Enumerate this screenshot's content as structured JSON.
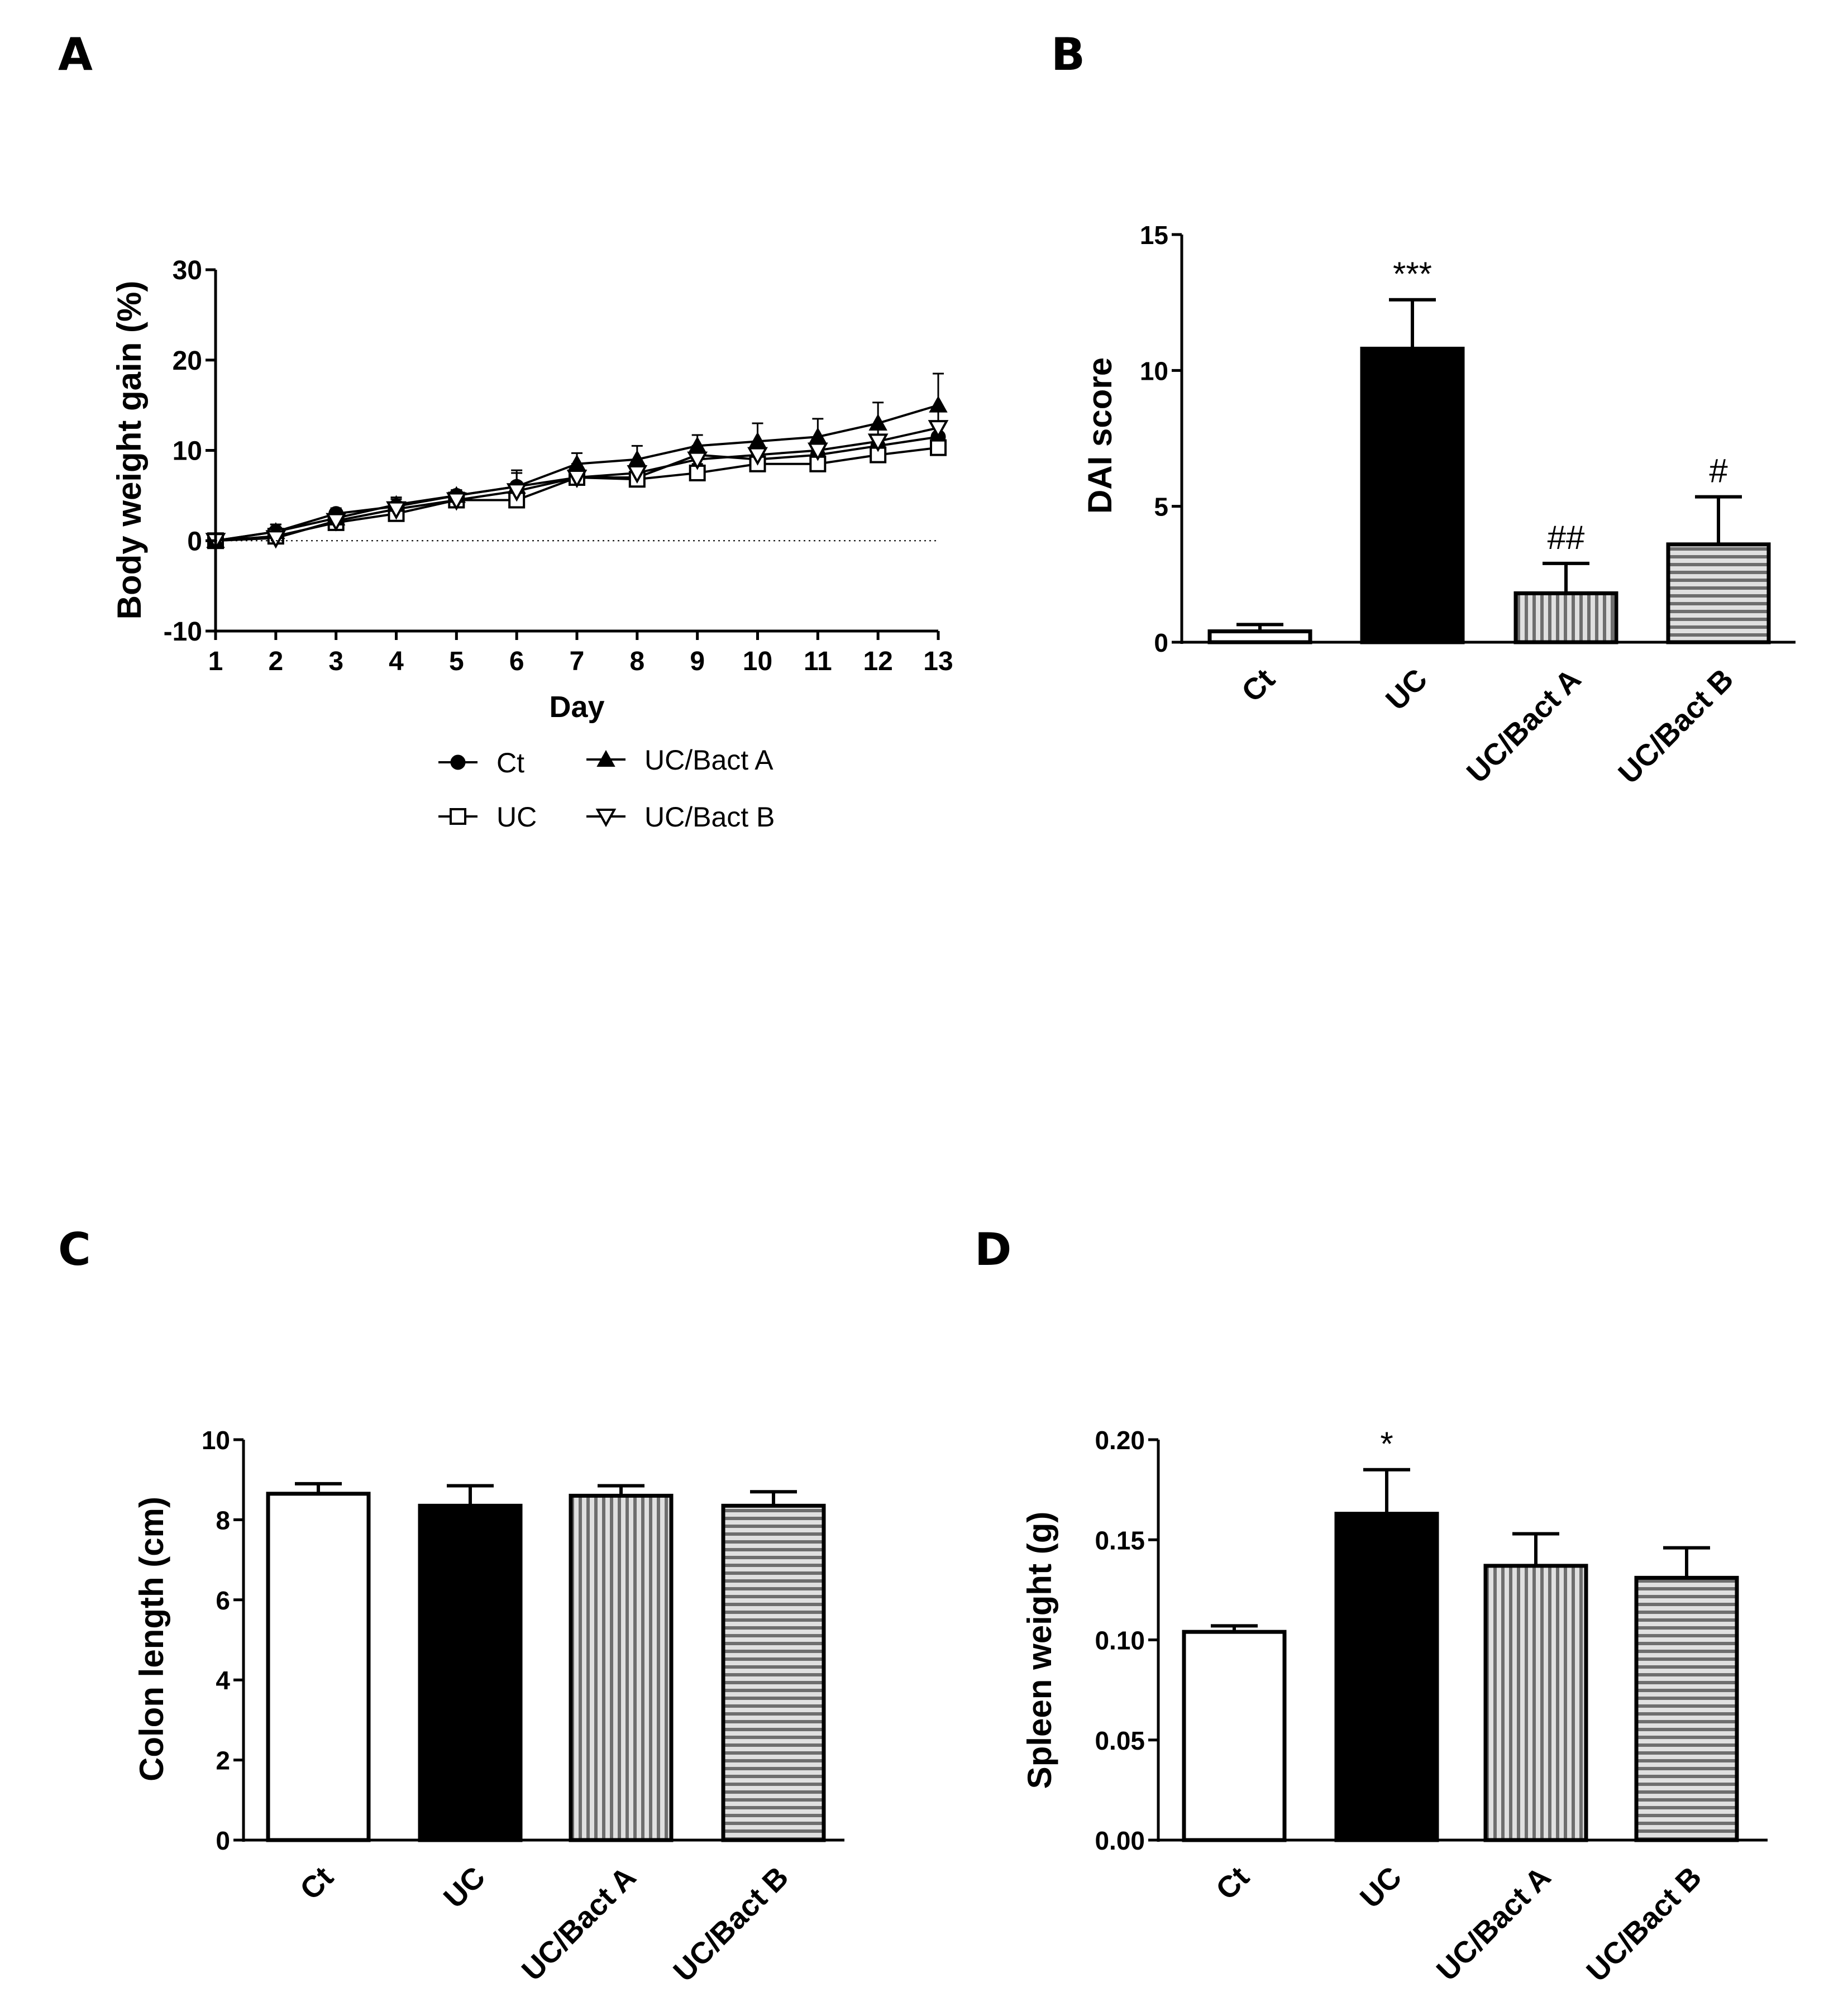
{
  "figure": {
    "panel_letters": [
      "A",
      "B",
      "C",
      "D"
    ]
  },
  "chart_data": [
    {
      "panel": "A",
      "type": "line",
      "title": "",
      "xlabel": "Day",
      "ylabel": "Body weight gain (%)",
      "x": [
        1,
        2,
        3,
        4,
        5,
        6,
        7,
        8,
        9,
        10,
        11,
        12,
        13
      ],
      "xlim": [
        1,
        13
      ],
      "ylim": [
        -10,
        30
      ],
      "yticks": [
        -10,
        0,
        10,
        20,
        30
      ],
      "reference_line": 0,
      "series": [
        {
          "name": "Ct",
          "marker": "filled-circle",
          "values": [
            0,
            1,
            3,
            3.8,
            5,
            6,
            7,
            7,
            9.5,
            9,
            9.5,
            10.5,
            11.5
          ],
          "errors": [
            0.3,
            0.8,
            0.6,
            0.8,
            0.6,
            1.8,
            1.5,
            0.8,
            1.0,
            1.2,
            1.0,
            1.0,
            1.5
          ]
        },
        {
          "name": "UC",
          "marker": "open-square",
          "values": [
            0,
            0.5,
            2,
            3,
            4.5,
            4.5,
            7,
            6.8,
            7.5,
            8.5,
            8.5,
            9.5,
            10.3
          ],
          "errors": [
            0.3,
            0.7,
            0.6,
            0.8,
            0.6,
            0.8,
            1.2,
            1.0,
            1.0,
            1.5,
            1.0,
            1.0,
            1.0
          ]
        },
        {
          "name": "UC/Bact A",
          "marker": "filled-triangle",
          "values": [
            0,
            1,
            2.5,
            4,
            5,
            6,
            8.5,
            9,
            10.5,
            11,
            11.5,
            13,
            15
          ],
          "errors": [
            0.3,
            0.8,
            0.7,
            0.8,
            0.6,
            1.5,
            1.2,
            1.5,
            1.2,
            2.0,
            2.0,
            2.3,
            3.5
          ]
        },
        {
          "name": "UC/Bact B",
          "marker": "open-triangle-down",
          "values": [
            0,
            0.3,
            2.2,
            3.5,
            4.5,
            5.5,
            7,
            7.5,
            9,
            9.5,
            10,
            11,
            12.5
          ],
          "errors": [
            0.3,
            1.5,
            0.6,
            0.8,
            0.6,
            1.0,
            1.0,
            1.0,
            1.5,
            1.5,
            1.3,
            1.5,
            2.0
          ]
        }
      ],
      "legend": {
        "placement": "bottom",
        "entries": [
          "Ct",
          "UC/Bact A",
          "UC",
          "UC/Bact B"
        ]
      }
    },
    {
      "panel": "B",
      "type": "bar",
      "title": "",
      "xlabel": "",
      "ylabel": "DAI score",
      "categories": [
        "Ct",
        "UC",
        "UC/Bact A",
        "UC/Bact B"
      ],
      "values": [
        0.4,
        10.8,
        1.8,
        3.6
      ],
      "errors": [
        0.25,
        1.8,
        1.1,
        1.75
      ],
      "fills": [
        "white",
        "black",
        "vertical-stripes",
        "horizontal-stripes"
      ],
      "annotations": [
        "",
        "***",
        "##",
        "#"
      ],
      "ylim": [
        0,
        15
      ],
      "yticks": [
        0,
        5,
        10,
        15
      ]
    },
    {
      "panel": "C",
      "type": "bar",
      "title": "",
      "xlabel": "",
      "ylabel": "Colon length (cm)",
      "categories": [
        "Ct",
        "UC",
        "UC/Bact A",
        "UC/Bact B"
      ],
      "values": [
        8.65,
        8.35,
        8.6,
        8.35
      ],
      "errors": [
        0.25,
        0.5,
        0.25,
        0.35
      ],
      "fills": [
        "white",
        "black",
        "vertical-stripes",
        "horizontal-stripes"
      ],
      "annotations": [
        "",
        "",
        "",
        ""
      ],
      "ylim": [
        0,
        10
      ],
      "yticks": [
        0,
        2,
        4,
        6,
        8,
        10
      ]
    },
    {
      "panel": "D",
      "type": "bar",
      "title": "",
      "xlabel": "",
      "ylabel": "Spleen weight (g)",
      "categories": [
        "Ct",
        "UC",
        "UC/Bact A",
        "UC/Bact B"
      ],
      "values": [
        0.104,
        0.163,
        0.137,
        0.131
      ],
      "errors": [
        0.003,
        0.022,
        0.016,
        0.015
      ],
      "fills": [
        "white",
        "black",
        "vertical-stripes",
        "horizontal-stripes"
      ],
      "annotations": [
        "",
        "*",
        "",
        ""
      ],
      "ylim": [
        0,
        0.2
      ],
      "yticks": [
        "0.00",
        "0.05",
        "0.10",
        "0.15",
        "0.20"
      ]
    }
  ]
}
